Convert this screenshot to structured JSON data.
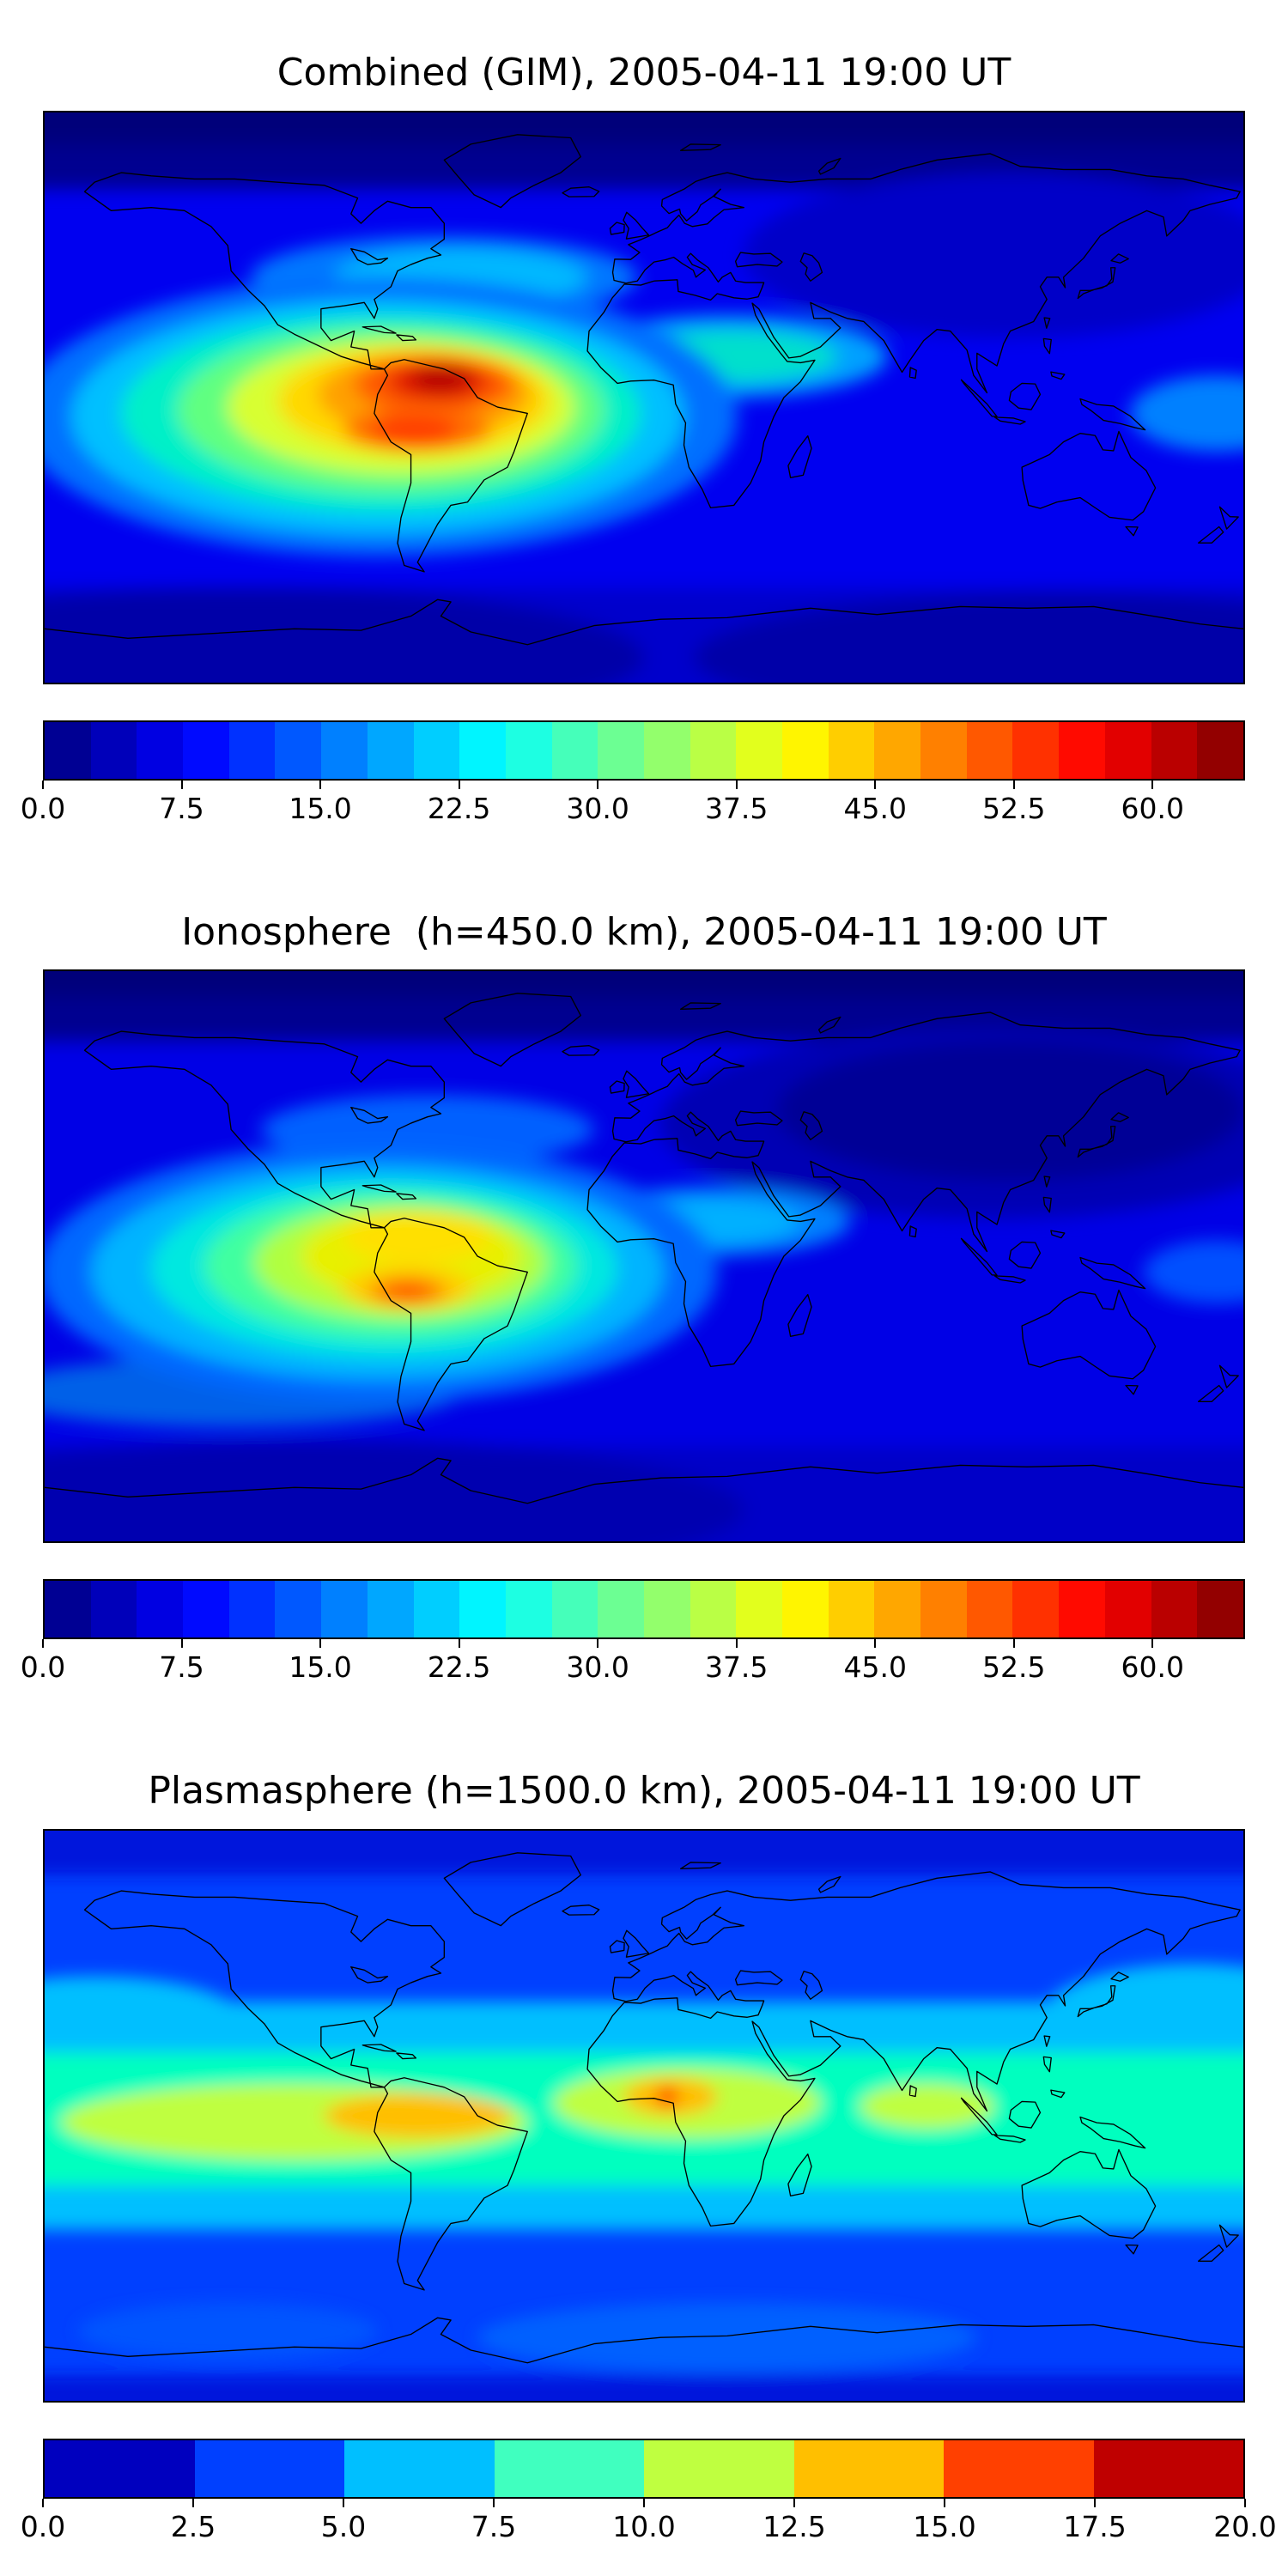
{
  "page": {
    "background": "#ffffff"
  },
  "figures": [
    {
      "title": "Combined (GIM), 2005-04-11 19:00 UT",
      "colorbar": {
        "colormap": "jet",
        "min": 0,
        "max": 65,
        "segment_step": 2.5,
        "tick_values": [
          0,
          7.5,
          15,
          22.5,
          30,
          37.5,
          45,
          52.5,
          60
        ],
        "tick_labels": [
          "0.0",
          "7.5",
          "15.0",
          "22.5",
          "30.0",
          "37.5",
          "45.0",
          "52.5",
          "60.0"
        ]
      }
    },
    {
      "title": "Ionosphere  (h=450.0 km), 2005-04-11 19:00 UT",
      "colorbar": {
        "colormap": "jet",
        "min": 0,
        "max": 65,
        "segment_step": 2.5,
        "tick_values": [
          0,
          7.5,
          15,
          22.5,
          30,
          37.5,
          45,
          52.5,
          60
        ],
        "tick_labels": [
          "0.0",
          "7.5",
          "15.0",
          "22.5",
          "30.0",
          "37.5",
          "45.0",
          "52.5",
          "60.0"
        ]
      }
    },
    {
      "title": "Plasmasphere (h=1500.0 km), 2005-04-11 19:00 UT",
      "colorbar": {
        "colormap": "jet",
        "min": 0,
        "max": 20,
        "segment_step": 2.5,
        "tick_values": [
          0,
          2.5,
          5,
          7.5,
          10,
          12.5,
          15,
          17.5,
          20
        ],
        "tick_labels": [
          "0.0",
          "2.5",
          "5.0",
          "7.5",
          "10.0",
          "12.5",
          "15.0",
          "17.5",
          "20.0"
        ]
      }
    }
  ],
  "chart_data": [
    {
      "type": "heatmap",
      "subtype": "filled-contour-world-map",
      "title": "Combined (GIM), 2005-04-11 19:00 UT",
      "projection": "equirectangular",
      "xlabel": "longitude",
      "ylabel": "latitude",
      "xlim": [
        -180,
        180
      ],
      "ylim": [
        -90,
        90
      ],
      "colormap": "jet",
      "value_range": [
        0,
        65
      ],
      "contour_step": 2.5,
      "colorbar_ticks": [
        0,
        7.5,
        15,
        22.5,
        30,
        37.5,
        45,
        52.5,
        60
      ],
      "legend_position": "bottom",
      "features": [
        {
          "name": "equatorial-anomaly-north-crest",
          "lon": -62,
          "lat": 4,
          "value": 62
        },
        {
          "name": "equatorial-anomaly-south-crest",
          "lon": -66,
          "lat": -13,
          "value": 55
        },
        {
          "name": "pacific-western-extension",
          "lon": -130,
          "lat": -5,
          "value": 30
        },
        {
          "name": "africa-equatorial-enhancement",
          "lon": 25,
          "lat": 13,
          "value": 27
        },
        {
          "name": "us-atlantic-mid-latitude-streak",
          "lon": -60,
          "lat": 38,
          "value": 18
        },
        {
          "name": "mid-latitude-background",
          "value": 10
        },
        {
          "name": "polar-minimum",
          "value": 3
        }
      ]
    },
    {
      "type": "heatmap",
      "subtype": "filled-contour-world-map",
      "title": "Ionosphere  (h=450.0 km), 2005-04-11 19:00 UT",
      "projection": "equirectangular",
      "xlabel": "longitude",
      "ylabel": "latitude",
      "xlim": [
        -180,
        180
      ],
      "ylim": [
        -90,
        90
      ],
      "colormap": "jet",
      "value_range": [
        0,
        65
      ],
      "contour_step": 2.5,
      "colorbar_ticks": [
        0,
        7.5,
        15,
        22.5,
        30,
        37.5,
        45,
        52.5,
        60
      ],
      "legend_position": "bottom",
      "features": [
        {
          "name": "equatorial-anomaly-south-crest",
          "lon": -66,
          "lat": -13,
          "value": 48
        },
        {
          "name": "equatorial-anomaly-north-crest",
          "lon": -68,
          "lat": 6,
          "value": 42
        },
        {
          "name": "africa-equatorial-enhancement",
          "lon": 20,
          "lat": 11,
          "value": 20
        },
        {
          "name": "asia-night-minimum",
          "lon": 110,
          "lat": 45,
          "value": 4
        },
        {
          "name": "ocean-background",
          "value": 8
        }
      ]
    },
    {
      "type": "heatmap",
      "subtype": "filled-contour-world-map",
      "title": "Plasmasphere (h=1500.0 km), 2005-04-11 19:00 UT",
      "projection": "equirectangular",
      "xlabel": "longitude",
      "ylabel": "latitude",
      "xlim": [
        -180,
        180
      ],
      "ylim": [
        -90,
        90
      ],
      "colormap": "jet",
      "value_range": [
        0,
        20
      ],
      "contour_step": 2.5,
      "colorbar_ticks": [
        0,
        2.5,
        5,
        7.5,
        10,
        12.5,
        15,
        17.5,
        20
      ],
      "legend_position": "bottom",
      "features": [
        {
          "name": "west-africa-peak",
          "lon": 7,
          "lat": 6,
          "value": 18
        },
        {
          "name": "south-america-peak",
          "lon": -68,
          "lat": 0,
          "value": 15
        },
        {
          "name": "equatorial-belt",
          "lat_range": [
            -20,
            20
          ],
          "value": 11
        },
        {
          "name": "mid-latitude-cyan-band",
          "lat_range": [
            -35,
            35
          ],
          "value": 6
        },
        {
          "name": "high-latitude-background",
          "value": 3
        }
      ]
    }
  ]
}
